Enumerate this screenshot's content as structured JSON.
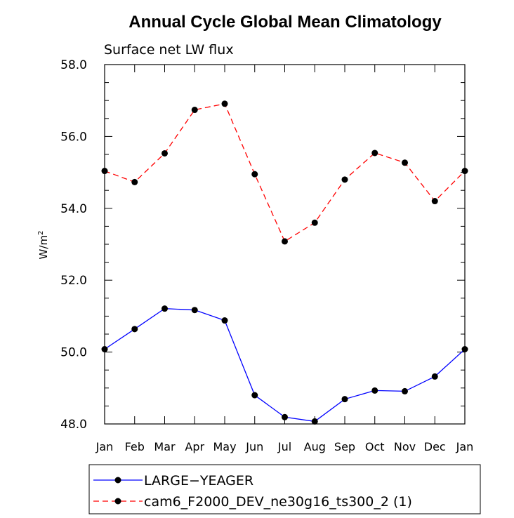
{
  "chart_data": {
    "type": "line",
    "title": "Annual Cycle Global Mean Climatology",
    "subtitle": "Surface net LW flux",
    "ylabel_base": "W/m",
    "ylabel_sup": "2",
    "ylim": [
      48.0,
      58.0
    ],
    "yticks": [
      "48.0",
      "50.0",
      "52.0",
      "54.0",
      "56.0",
      "58.0"
    ],
    "categories": [
      "Jan",
      "Feb",
      "Mar",
      "Apr",
      "May",
      "Jun",
      "Jul",
      "Aug",
      "Sep",
      "Oct",
      "Nov",
      "Dec",
      "Jan"
    ],
    "series": [
      {
        "name": "LARGE−YEAGER",
        "color": "#0000ff",
        "dash": "solid",
        "values": [
          50.08,
          50.64,
          51.21,
          51.17,
          50.88,
          48.8,
          48.19,
          48.07,
          48.69,
          48.93,
          48.91,
          49.32,
          50.08
        ]
      },
      {
        "name": "cam6_F2000_DEV_ne30g16_ts300_2 (1)",
        "color": "#ff0000",
        "dash": "dashed",
        "values": [
          55.04,
          54.73,
          55.53,
          56.74,
          56.91,
          54.95,
          53.08,
          53.6,
          54.8,
          55.54,
          55.27,
          54.2,
          55.04
        ]
      }
    ],
    "legend_position": "bottom"
  }
}
